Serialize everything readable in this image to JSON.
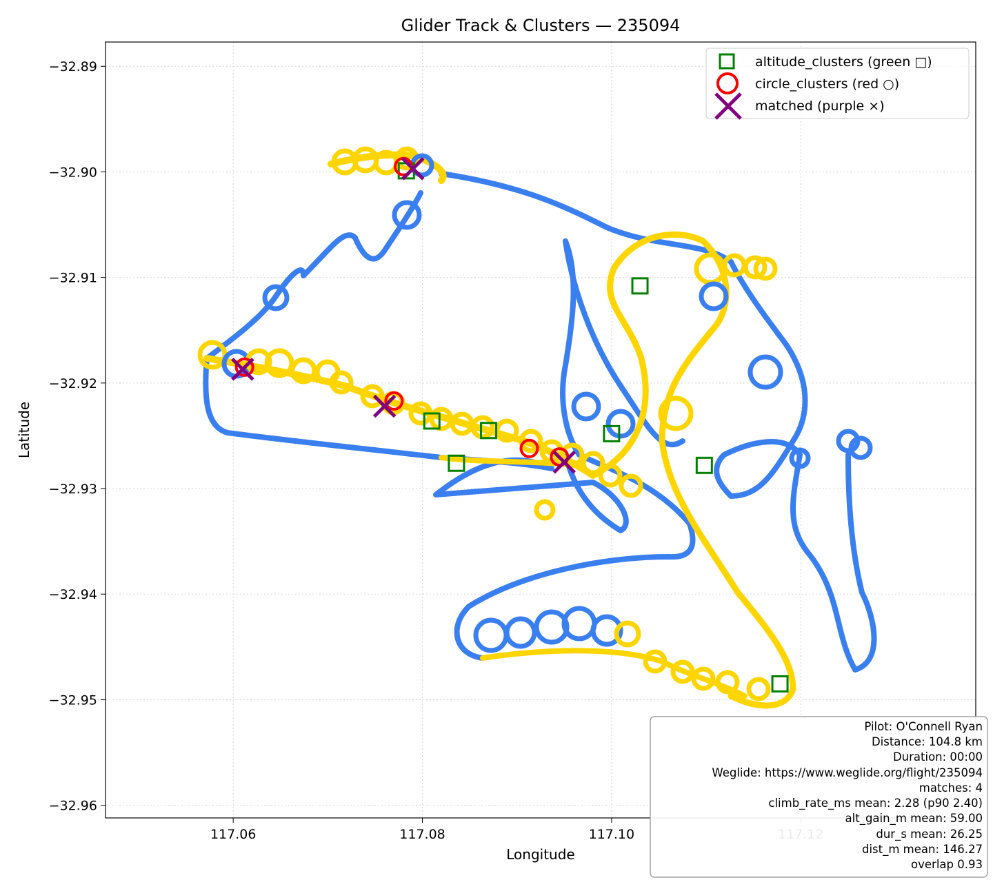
{
  "chart_data": {
    "type": "scatter",
    "title": "Glider Track & Clusters — 235094",
    "xlabel": "Longitude",
    "ylabel": "Latitude",
    "xlim": [
      117.0465,
      117.1385
    ],
    "ylim": [
      -32.9612,
      -32.8877
    ],
    "xticks": [
      117.06,
      117.08,
      117.1,
      117.12
    ],
    "xtick_labels": [
      "117.06",
      "117.08",
      "117.10",
      "117.12"
    ],
    "yticks": [
      -32.89,
      -32.9,
      -32.91,
      -32.92,
      -32.93,
      -32.94,
      -32.95,
      -32.96
    ],
    "ytick_labels": [
      "−32.89",
      "−32.90",
      "−32.91",
      "−32.92",
      "−32.93",
      "−32.94",
      "−32.95",
      "−32.96"
    ],
    "grid": true,
    "legend_position": "top-right",
    "colors": {
      "track_cruise": "#3a7ff0",
      "track_climb": "#ffd500",
      "altitude_clusters": "#007f00",
      "circle_clusters": "#ff0000",
      "matched": "#800080"
    },
    "legend": [
      {
        "label": "altitude_clusters (green □)",
        "marker": "square"
      },
      {
        "label": "circle_clusters (red ○)",
        "marker": "circle"
      },
      {
        "label": "matched (purple ×)",
        "marker": "x"
      }
    ],
    "series": [
      {
        "name": "altitude_clusters (green □)",
        "points": [
          [
            117.0783,
            -32.8999
          ],
          [
            117.103,
            -32.9108
          ],
          [
            117.081,
            -32.9236
          ],
          [
            117.087,
            -32.9245
          ],
          [
            117.1,
            -32.9248
          ],
          [
            117.0836,
            -32.9276
          ],
          [
            117.1098,
            -32.9278
          ],
          [
            117.1178,
            -32.9485
          ]
        ]
      },
      {
        "name": "circle_clusters (red ○)",
        "points": [
          [
            117.078,
            -32.8995
          ],
          [
            117.0612,
            -32.9185
          ],
          [
            117.077,
            -32.9217
          ],
          [
            117.0913,
            -32.9262
          ],
          [
            117.0945,
            -32.927
          ]
        ]
      },
      {
        "name": "matched (purple ×)",
        "points": [
          [
            117.079,
            -32.8997
          ],
          [
            117.061,
            -32.9187
          ],
          [
            117.076,
            -32.9222
          ],
          [
            117.095,
            -32.9275
          ]
        ]
      }
    ]
  },
  "info_box": {
    "lines": [
      "Pilot: O'Connell Ryan",
      "Distance: 104.8 km",
      "Duration: 00:00",
      "Weglide: https://www.weglide.org/flight/235094",
      "matches: 4",
      "climb_rate_ms mean: 2.28 (p90 2.40)",
      "alt_gain_m mean: 59.00",
      "dur_s mean: 26.25",
      "dist_m mean: 146.27",
      "overlap 0.93"
    ]
  }
}
